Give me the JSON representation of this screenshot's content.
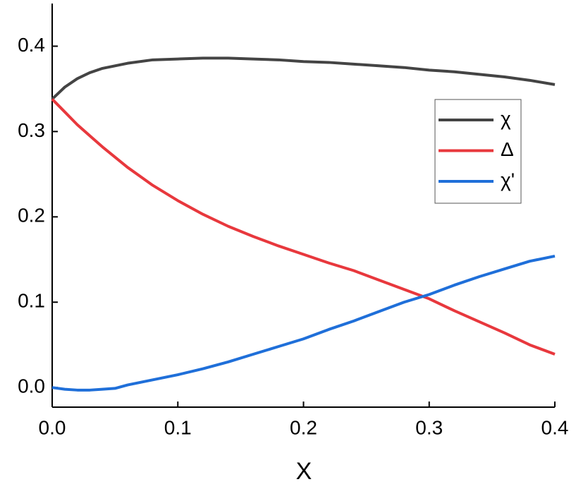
{
  "chart_data": {
    "type": "line",
    "xlabel": "X",
    "x": [
      0,
      0.01,
      0.02,
      0.03,
      0.04,
      0.05,
      0.06,
      0.08,
      0.1,
      0.12,
      0.14,
      0.16,
      0.18,
      0.2,
      0.22,
      0.24,
      0.26,
      0.28,
      0.3,
      0.32,
      0.34,
      0.36,
      0.38,
      0.4
    ],
    "series": [
      {
        "name": "χ",
        "color": "#444444",
        "values": [
          0.338,
          0.352,
          0.362,
          0.369,
          0.374,
          0.377,
          0.38,
          0.384,
          0.385,
          0.386,
          0.386,
          0.385,
          0.384,
          0.382,
          0.381,
          0.379,
          0.377,
          0.375,
          0.372,
          0.37,
          0.367,
          0.364,
          0.36,
          0.355
        ]
      },
      {
        "name": "Δ",
        "color": "#e8383d",
        "values": [
          0.338,
          0.323,
          0.308,
          0.295,
          0.282,
          0.27,
          0.258,
          0.237,
          0.219,
          0.203,
          0.189,
          0.177,
          0.166,
          0.156,
          0.146,
          0.137,
          0.126,
          0.115,
          0.104,
          0.09,
          0.077,
          0.064,
          0.05,
          0.039
        ]
      },
      {
        "name": "χ'",
        "color": "#1f6fd9",
        "values": [
          0,
          -0.002,
          -0.003,
          -0.003,
          -0.002,
          -0.001,
          0.003,
          0.009,
          0.015,
          0.022,
          0.03,
          0.039,
          0.048,
          0.057,
          0.068,
          0.078,
          0.089,
          0.1,
          0.109,
          0.12,
          0.13,
          0.139,
          0.148,
          0.154
        ]
      }
    ],
    "xlim": [
      0,
      0.4
    ],
    "xticks": [
      {
        "value": 0,
        "label": "0.0"
      },
      0.1,
      0.2,
      0.3,
      0.4
    ],
    "ylim": [
      -0.023,
      0.45
    ],
    "yticks": [
      {
        "value": 0,
        "label": "0.0"
      },
      0.1,
      0.2,
      0.3,
      0.4
    ],
    "grid": false,
    "legend": "right"
  }
}
